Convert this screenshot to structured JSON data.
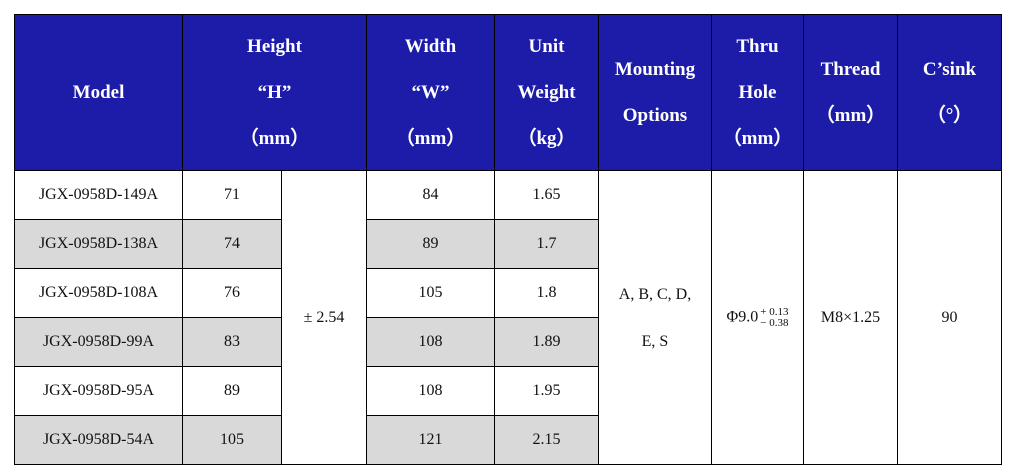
{
  "table": {
    "header": [
      {
        "lines": [
          "Model"
        ]
      },
      {
        "lines": [
          "Height",
          "“H”",
          "（mm）"
        ]
      },
      {
        "lines": [
          "Width",
          "“W”",
          "（mm）"
        ]
      },
      {
        "lines": [
          "Unit",
          "Weight",
          "（kg）"
        ]
      },
      {
        "lines": [
          "Mounting",
          "Options"
        ]
      },
      {
        "lines": [
          "Thru",
          "Hole",
          "（mm）"
        ]
      },
      {
        "lines": [
          "Thread",
          "（mm）"
        ]
      },
      {
        "lines": [
          "C’sink",
          "（°）"
        ]
      }
    ],
    "rows": [
      {
        "model": "JGX-0958D-149A",
        "height": "71",
        "width": "84",
        "weight": "1.65"
      },
      {
        "model": "JGX-0958D-138A",
        "height": "74",
        "width": "89",
        "weight": "1.7"
      },
      {
        "model": "JGX-0958D-108A",
        "height": "76",
        "width": "105",
        "weight": "1.8"
      },
      {
        "model": "JGX-0958D-99A",
        "height": "83",
        "width": "108",
        "weight": "1.89"
      },
      {
        "model": "JGX-0958D-95A",
        "height": "89",
        "width": "108",
        "weight": "1.95"
      },
      {
        "model": "JGX-0958D-54A",
        "height": "105",
        "width": "121",
        "weight": "2.15"
      }
    ],
    "height_tolerance": "± 2.54",
    "mounting": [
      "A, B, C, D,",
      "E, S"
    ],
    "thru_hole": {
      "base": "Φ9.0",
      "upper": "+ 0.13",
      "lower": "− 0.38"
    },
    "thread": "M8×1.25",
    "csink": "90"
  }
}
